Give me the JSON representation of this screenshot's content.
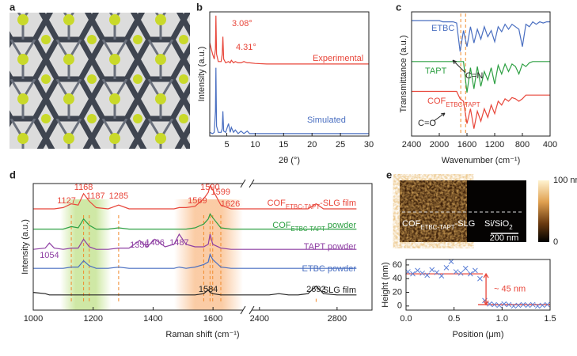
{
  "chart_data": [
    {
      "type": "image",
      "panel": "a"
    },
    {
      "type": "line",
      "panel": "b",
      "xlabel": "2θ (°)",
      "ylabel": "Intensity (a.u.)",
      "xlim": [
        2,
        30
      ],
      "xticks": [
        5,
        10,
        15,
        20,
        25,
        30
      ],
      "ylim": [
        0,
        1
      ],
      "annotations": [
        "3.08°",
        "4.31°"
      ],
      "x": [
        2,
        2.5,
        2.8,
        3.0,
        3.08,
        3.2,
        3.5,
        4.0,
        4.2,
        4.31,
        4.45,
        4.8,
        5.3,
        5.6,
        5.8,
        6.2,
        6.5,
        7,
        7.5,
        8,
        8.6,
        9,
        10,
        12,
        15,
        20,
        25,
        30
      ],
      "series": [
        {
          "name": "Experimental",
          "color": "#e8463a",
          "values": [
            0.75,
            0.66,
            0.62,
            0.7,
            0.97,
            0.66,
            0.6,
            0.6,
            0.66,
            0.8,
            0.62,
            0.59,
            0.6,
            0.59,
            0.61,
            0.59,
            0.6,
            0.59,
            0.59,
            0.6,
            0.59,
            0.59,
            0.585,
            0.58,
            0.58,
            0.58,
            0.58,
            0.58
          ]
        },
        {
          "name": "Simulated",
          "color": "#4a6fc1",
          "values": [
            0.03,
            0.02,
            0.03,
            0.2,
            0.55,
            0.08,
            0.03,
            0.03,
            0.06,
            0.2,
            0.04,
            0.03,
            0.1,
            0.03,
            0.07,
            0.03,
            0.05,
            0.02,
            0.04,
            0.02,
            0.04,
            0.02,
            0.02,
            0.02,
            0.02,
            0.02,
            0.02,
            0.02
          ]
        }
      ]
    },
    {
      "type": "line",
      "panel": "c",
      "xlabel": "Wavenumber (cm⁻¹)",
      "ylabel": "Transmittance (a.u.)",
      "xlim": [
        2400,
        400
      ],
      "xticks": [
        2400,
        2000,
        1600,
        1200,
        800,
        400
      ],
      "ylim": [
        0,
        1
      ],
      "vlines": [
        1690,
        1620
      ],
      "annotations": [
        "C=N",
        "C=O"
      ],
      "x": [
        2400,
        2350,
        2300,
        2250,
        2200,
        2150,
        2100,
        2050,
        2000,
        1950,
        1900,
        1850,
        1800,
        1750,
        1700,
        1650,
        1600,
        1550,
        1500,
        1450,
        1400,
        1350,
        1300,
        1250,
        1200,
        1150,
        1100,
        1050,
        1000,
        950,
        900,
        850,
        800,
        750,
        700,
        650,
        600,
        550,
        500,
        450,
        400
      ],
      "series": [
        {
          "name": "ETBC",
          "color": "#4a6fc1",
          "values": [
            0.93,
            0.93,
            0.93,
            0.93,
            0.93,
            0.93,
            0.93,
            0.93,
            0.93,
            0.92,
            0.92,
            0.92,
            0.92,
            0.91,
            0.68,
            0.85,
            0.72,
            0.88,
            0.75,
            0.86,
            0.78,
            0.88,
            0.8,
            0.85,
            0.76,
            0.88,
            0.84,
            0.9,
            0.86,
            0.9,
            0.88,
            0.86,
            0.72,
            0.9,
            0.88,
            0.92,
            0.9,
            0.92,
            0.91,
            0.92,
            0.92
          ]
        },
        {
          "name": "TAPT",
          "color": "#2ea043",
          "values": [
            0.6,
            0.6,
            0.6,
            0.6,
            0.6,
            0.6,
            0.6,
            0.6,
            0.6,
            0.6,
            0.6,
            0.6,
            0.6,
            0.6,
            0.6,
            0.6,
            0.35,
            0.55,
            0.38,
            0.56,
            0.4,
            0.52,
            0.45,
            0.55,
            0.42,
            0.57,
            0.5,
            0.58,
            0.52,
            0.58,
            0.56,
            0.5,
            0.58,
            0.56,
            0.59,
            0.6,
            0.6,
            0.6,
            0.6,
            0.6,
            0.6
          ]
        },
        {
          "name": "COF",
          "name_sub": "ETBC-TAPT",
          "color": "#e8463a",
          "values": [
            0.36,
            0.36,
            0.36,
            0.36,
            0.36,
            0.36,
            0.36,
            0.36,
            0.36,
            0.36,
            0.36,
            0.36,
            0.36,
            0.36,
            0.3,
            0.28,
            0.1,
            0.22,
            0.06,
            0.2,
            0.12,
            0.22,
            0.15,
            0.25,
            0.18,
            0.28,
            0.25,
            0.3,
            0.28,
            0.31,
            0.3,
            0.28,
            0.3,
            0.33,
            0.33,
            0.33,
            0.33,
            0.33,
            0.33,
            0.33,
            0.33
          ]
        }
      ]
    },
    {
      "type": "line",
      "panel": "d",
      "xlabel": "Raman shift (cm⁻¹)",
      "ylabel": "Intensity (a.u.)",
      "xlim": [
        1000,
        2980
      ],
      "xbreak": [
        1700,
        2360
      ],
      "xticks": [
        1000,
        1200,
        1400,
        1600,
        2400,
        2800
      ],
      "ylim": [
        0,
        1
      ],
      "bands": [
        {
          "from": 1090,
          "to": 1260,
          "color": "#a8d65c"
        },
        {
          "from": 1470,
          "to": 1700,
          "color": "#f7a35c"
        }
      ],
      "x": [
        1000,
        1040,
        1054,
        1070,
        1100,
        1127,
        1150,
        1168,
        1187,
        1210,
        1250,
        1285,
        1320,
        1355,
        1380,
        1406,
        1440,
        1470,
        1487,
        1510,
        1540,
        1569,
        1584,
        1590,
        1599,
        1626,
        1660,
        1700,
        2400,
        2450,
        2500,
        2550,
        2600,
        2650,
        2692,
        2730,
        2800,
        2850,
        2900
      ],
      "series": [
        {
          "name": "COF",
          "name_sub": "ETBC-TAPT",
          "name_tail": "-SLG film",
          "color": "#e8463a",
          "peaks": [
            1127,
            1168,
            1187,
            1285,
            1569,
            1590,
            1599,
            1626
          ],
          "values": [
            0.8,
            0.8,
            0.8,
            0.8,
            0.81,
            0.84,
            0.83,
            0.92,
            0.86,
            0.81,
            0.8,
            0.83,
            0.8,
            0.8,
            0.8,
            0.8,
            0.8,
            0.8,
            0.81,
            0.81,
            0.82,
            0.88,
            0.93,
            0.98,
            0.95,
            0.83,
            0.8,
            0.8,
            0.8,
            0.8,
            0.8,
            0.8,
            0.8,
            0.8,
            0.84,
            0.8,
            0.8,
            0.8,
            0.8
          ]
        },
        {
          "name": "COF",
          "name_sub": "ETBC-TAPT",
          "name_tail": " powder",
          "color": "#2ea043",
          "values": [
            0.64,
            0.64,
            0.64,
            0.64,
            0.64,
            0.66,
            0.65,
            0.72,
            0.67,
            0.64,
            0.64,
            0.65,
            0.64,
            0.64,
            0.64,
            0.64,
            0.64,
            0.64,
            0.64,
            0.64,
            0.65,
            0.68,
            0.72,
            0.76,
            0.73,
            0.65,
            0.64,
            0.64,
            0.64,
            0.64,
            0.64,
            0.64,
            0.64,
            0.64,
            0.64,
            0.64,
            0.64,
            0.64,
            0.64
          ]
        },
        {
          "name": "TAPT powder",
          "color": "#8e3fa3",
          "peaks": [
            1054,
            1355,
            1406,
            1487
          ],
          "values": [
            0.48,
            0.49,
            0.53,
            0.49,
            0.48,
            0.49,
            0.49,
            0.56,
            0.5,
            0.48,
            0.48,
            0.49,
            0.49,
            0.55,
            0.5,
            0.56,
            0.5,
            0.52,
            0.6,
            0.52,
            0.5,
            0.5,
            0.52,
            0.6,
            0.52,
            0.49,
            0.48,
            0.48,
            0.48,
            0.48,
            0.48,
            0.48,
            0.48,
            0.48,
            0.48,
            0.48,
            0.48,
            0.48,
            0.48
          ]
        },
        {
          "name": "ETBC powder",
          "color": "#4a6fc1",
          "values": [
            0.33,
            0.33,
            0.33,
            0.33,
            0.33,
            0.34,
            0.34,
            0.39,
            0.35,
            0.33,
            0.33,
            0.34,
            0.33,
            0.33,
            0.33,
            0.33,
            0.33,
            0.33,
            0.34,
            0.33,
            0.34,
            0.36,
            0.38,
            0.44,
            0.4,
            0.34,
            0.33,
            0.33,
            0.33,
            0.33,
            0.33,
            0.33,
            0.33,
            0.33,
            0.33,
            0.33,
            0.33,
            0.33,
            0.33
          ]
        },
        {
          "name": "SLG film",
          "color": "#222222",
          "peaks": [
            1584,
            2692
          ],
          "values": [
            0.14,
            0.13,
            0.12,
            0.12,
            0.12,
            0.12,
            0.12,
            0.12,
            0.12,
            0.12,
            0.12,
            0.12,
            0.12,
            0.12,
            0.12,
            0.12,
            0.12,
            0.12,
            0.12,
            0.12,
            0.12,
            0.13,
            0.16,
            0.14,
            0.13,
            0.12,
            0.12,
            0.12,
            0.12,
            0.12,
            0.13,
            0.12,
            0.12,
            0.13,
            0.19,
            0.13,
            0.12,
            0.12,
            0.12
          ]
        }
      ]
    },
    {
      "type": "scatter",
      "panel": "e",
      "xlabel": "Position (μm)",
      "ylabel": "Height (nm)",
      "xlim": [
        0,
        1.5
      ],
      "xticks": [
        {
          "value": 0,
          "label": "0.0"
        },
        0.5,
        {
          "value": 1,
          "label": "1.0"
        },
        1.5
      ],
      "ylim": [
        -6,
        68
      ],
      "yticks": [
        0,
        20,
        40,
        60
      ],
      "color": "#5b7fd6",
      "image_labels": {
        "left": "COF",
        "left_sub": "ETBC-TAPT",
        "left_tail": "-SLG",
        "right": "Si/SiO",
        "right_sub": "2",
        "scale_bar": "200 nm"
      },
      "colorbar": {
        "clim": [
          0,
          100
        ],
        "ticks": [
          {
            "value": 100,
            "label": "100 nm"
          },
          0
        ]
      },
      "annotation": "~ 45 nm",
      "fit_lines": [
        {
          "x": [
            0,
            0.8
          ],
          "y": 47
        },
        {
          "x": [
            0.75,
            1.5
          ],
          "y": 2
        }
      ],
      "x": [
        0.02,
        0.07,
        0.12,
        0.17,
        0.22,
        0.27,
        0.32,
        0.37,
        0.42,
        0.47,
        0.52,
        0.57,
        0.62,
        0.67,
        0.72,
        0.77,
        0.82,
        0.87,
        0.92,
        0.97,
        1.02,
        1.07,
        1.12,
        1.17,
        1.22,
        1.27,
        1.32,
        1.37,
        1.42,
        1.47
      ],
      "values": [
        50,
        47,
        52,
        48,
        45,
        53,
        49,
        44,
        56,
        65,
        50,
        48,
        55,
        47,
        52,
        40,
        8,
        3,
        2,
        1,
        3,
        2,
        0,
        1,
        2,
        1,
        2,
        0,
        1,
        2
      ]
    }
  ]
}
